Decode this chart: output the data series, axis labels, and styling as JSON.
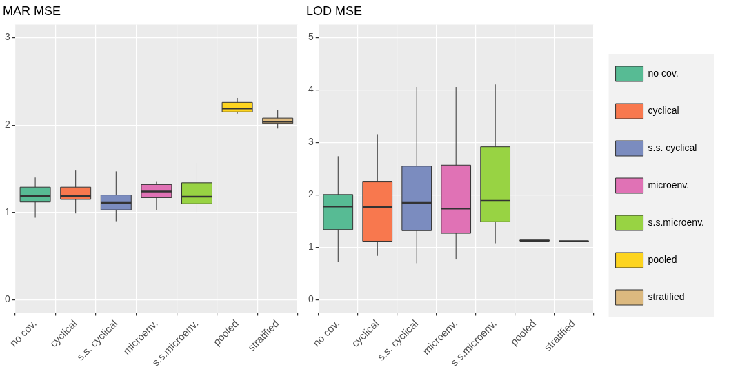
{
  "chart_data": [
    {
      "type": "box",
      "title": "MAR MSE",
      "categories": [
        "no cov.",
        "cyclical",
        "s.s. cyclical",
        "microenv.",
        "s.s.microenv.",
        "pooled",
        "stratified"
      ],
      "series": [
        {
          "color": "#57bb94",
          "boxes": [
            {
              "low": 0.94,
              "q1": 1.12,
              "median": 1.19,
              "q3": 1.29,
              "high": 1.4
            },
            null,
            null,
            null,
            null,
            null,
            null
          ]
        },
        {
          "color": "#f8784e",
          "boxes": [
            null,
            {
              "low": 0.99,
              "q1": 1.15,
              "median": 1.19,
              "q3": 1.29,
              "high": 1.48
            },
            null,
            null,
            null,
            null,
            null
          ]
        },
        {
          "color": "#7b8cbf",
          "boxes": [
            null,
            null,
            {
              "low": 0.9,
              "q1": 1.03,
              "median": 1.11,
              "q3": 1.2,
              "high": 1.47
            },
            null,
            null,
            null,
            null
          ]
        },
        {
          "color": "#e072b5",
          "boxes": [
            null,
            null,
            null,
            {
              "low": 1.03,
              "q1": 1.17,
              "median": 1.24,
              "q3": 1.32,
              "high": 1.35
            },
            null,
            null,
            null
          ]
        },
        {
          "color": "#98d343",
          "boxes": [
            null,
            null,
            null,
            null,
            {
              "low": 1.0,
              "q1": 1.1,
              "median": 1.18,
              "q3": 1.34,
              "high": 1.57
            },
            null,
            null
          ]
        },
        {
          "color": "#fdd41f",
          "boxes": [
            null,
            null,
            null,
            null,
            null,
            {
              "low": 2.13,
              "q1": 2.15,
              "median": 2.19,
              "q3": 2.26,
              "high": 2.31
            },
            null
          ]
        },
        {
          "color": "#dcb97f",
          "boxes": [
            null,
            null,
            null,
            null,
            null,
            null,
            {
              "low": 1.96,
              "q1": 2.02,
              "median": 2.04,
              "q3": 2.08,
              "high": 2.17
            }
          ]
        }
      ],
      "ylim": [
        -0.15,
        3.15
      ],
      "yticks": [
        0,
        1,
        2,
        3
      ],
      "grid": true,
      "legend": false
    },
    {
      "type": "box",
      "title": "LOD MSE",
      "categories": [
        "no cov.",
        "cyclical",
        "s.s. cyclical",
        "microenv.",
        "s.s.microenv.",
        "pooled",
        "stratified"
      ],
      "series": [
        {
          "name": "no cov.",
          "color": "#57bb94",
          "boxes": [
            {
              "low": 0.72,
              "q1": 1.34,
              "median": 1.78,
              "q3": 2.01,
              "high": 2.74
            },
            null,
            null,
            null,
            null,
            null,
            null
          ]
        },
        {
          "name": "cyclical",
          "color": "#f8784e",
          "boxes": [
            null,
            {
              "low": 0.84,
              "q1": 1.12,
              "median": 1.77,
              "q3": 2.25,
              "high": 3.16
            },
            null,
            null,
            null,
            null,
            null
          ]
        },
        {
          "name": "s.s. cyclical",
          "color": "#7b8cbf",
          "boxes": [
            null,
            null,
            {
              "low": 0.7,
              "q1": 1.32,
              "median": 1.85,
              "q3": 2.55,
              "high": 4.06
            },
            null,
            null,
            null,
            null
          ]
        },
        {
          "name": "microenv.",
          "color": "#e072b5",
          "boxes": [
            null,
            null,
            null,
            {
              "low": 0.77,
              "q1": 1.27,
              "median": 1.74,
              "q3": 2.57,
              "high": 4.06
            },
            null,
            null,
            null
          ]
        },
        {
          "name": "s.s.microenv.",
          "color": "#98d343",
          "boxes": [
            null,
            null,
            null,
            null,
            {
              "low": 1.08,
              "q1": 1.49,
              "median": 1.89,
              "q3": 2.92,
              "high": 4.11
            },
            null,
            null
          ]
        },
        {
          "name": "pooled",
          "color": "#fdd41f",
          "boxes": [
            null,
            null,
            null,
            null,
            null,
            {
              "low": 1.13,
              "q1": 1.13,
              "median": 1.13,
              "q3": 1.14,
              "high": 1.14
            },
            null
          ]
        },
        {
          "name": "stratified",
          "color": "#dcb97f",
          "boxes": [
            null,
            null,
            null,
            null,
            null,
            null,
            {
              "low": 1.11,
              "q1": 1.11,
              "median": 1.12,
              "q3": 1.12,
              "high": 1.12
            }
          ]
        }
      ],
      "ylim": [
        -0.25,
        5.25
      ],
      "yticks": [
        0,
        1,
        2,
        3,
        4,
        5
      ],
      "grid": true,
      "legend": "right"
    }
  ]
}
